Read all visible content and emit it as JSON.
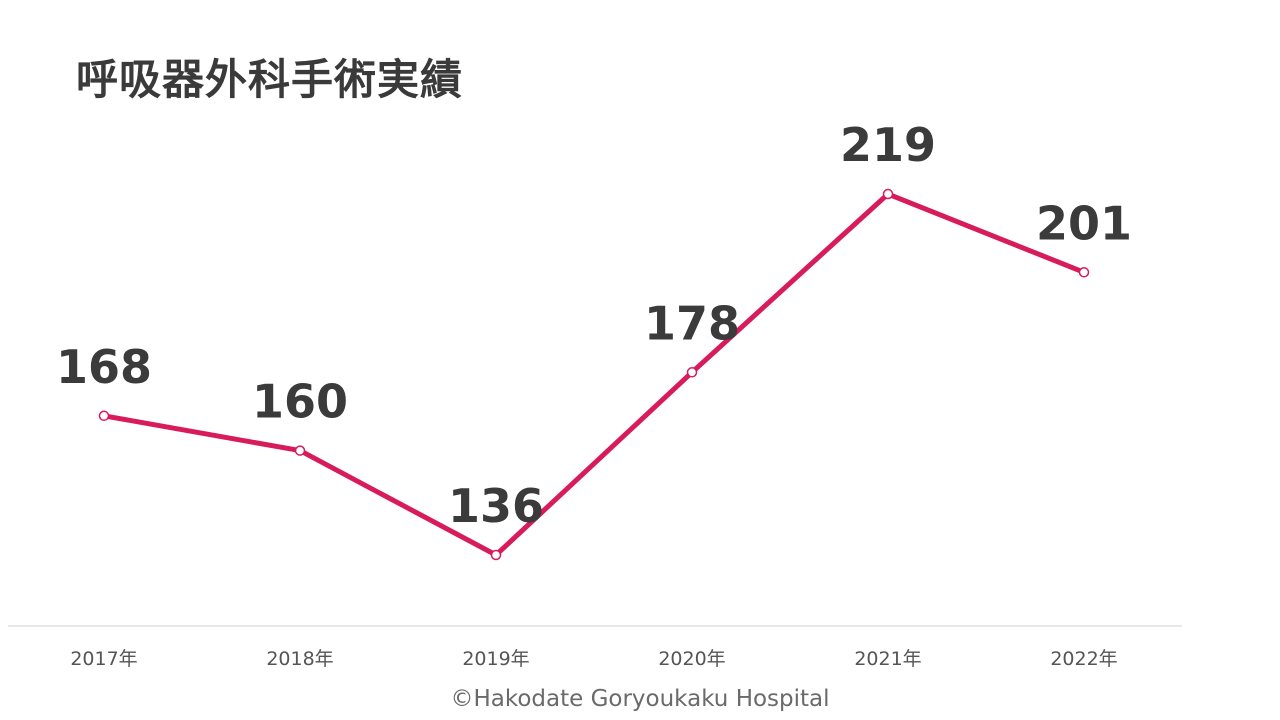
{
  "chart_data": {
    "type": "line",
    "title": "呼吸器外科手術実績",
    "categories": [
      "2017年",
      "2018年",
      "2019年",
      "2020年",
      "2021年",
      "2022年"
    ],
    "series": [
      {
        "values": [
          168,
          160,
          136,
          178,
          219,
          201
        ],
        "color": "#d81b5a"
      }
    ],
    "xlabel": "",
    "ylabel": "",
    "grid": false,
    "legend": "none",
    "data_labels": true
  },
  "footer": {
    "copyright": "©Hakodate Goryoukaku Hospital"
  },
  "colors": {
    "line": "#d81b5a",
    "text": "#3a3a3a",
    "axis": "#d9d9d9",
    "background": "#ffffff"
  }
}
